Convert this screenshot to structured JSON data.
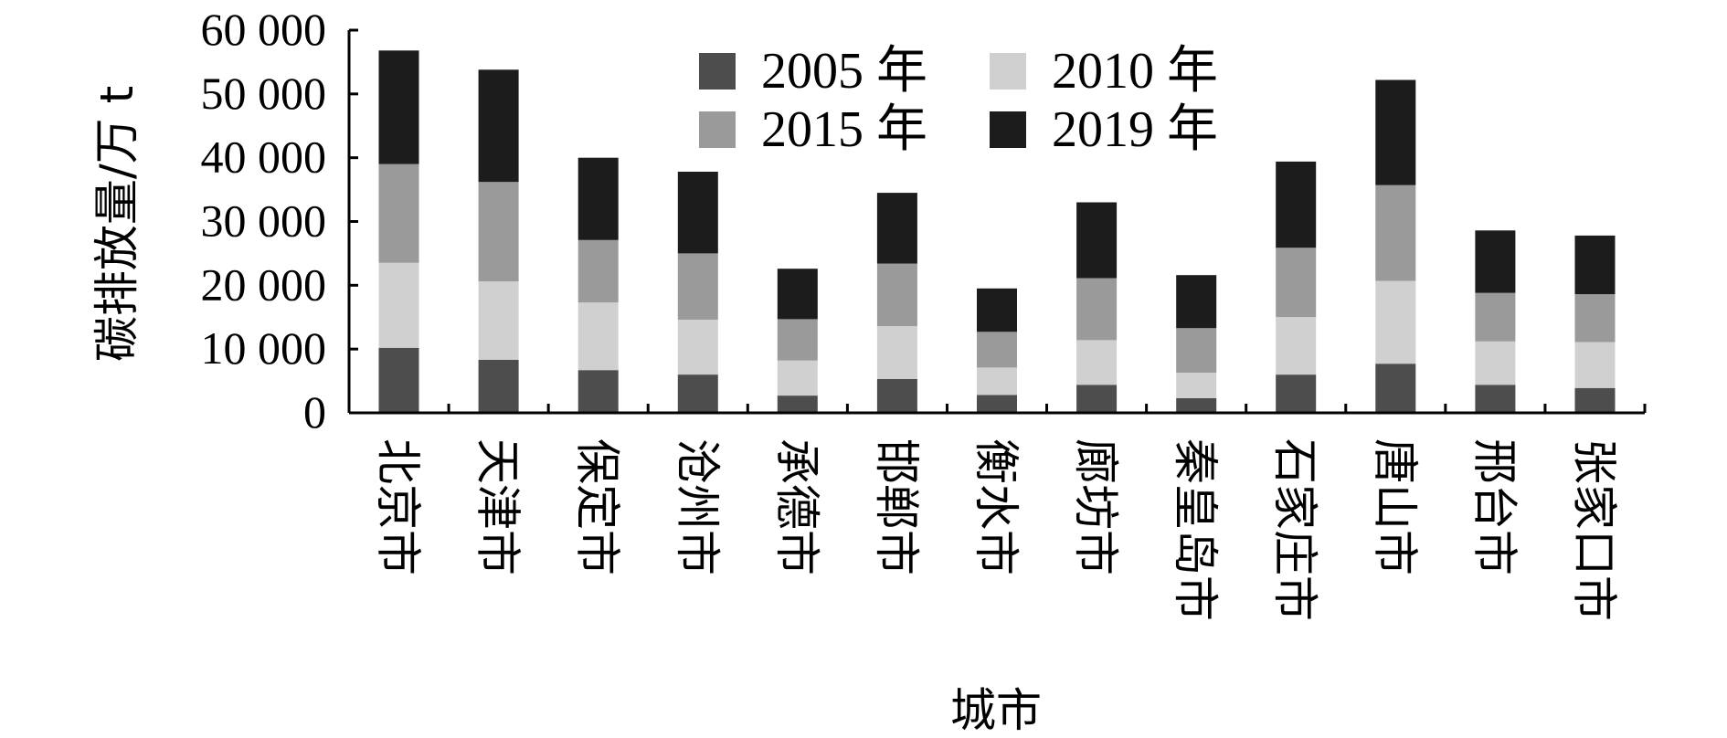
{
  "chart_data": {
    "type": "bar",
    "stacked": true,
    "title": "",
    "xlabel": "城市",
    "ylabel": "碳排放量/万 t",
    "ylim": [
      0,
      60000
    ],
    "yticks": [
      0,
      10000,
      20000,
      30000,
      40000,
      50000,
      60000
    ],
    "ytick_labels": [
      "0",
      "10 000",
      "20 000",
      "30 000",
      "40 000",
      "50 000",
      "60 000"
    ],
    "grid": false,
    "legend_position": "top-center",
    "categories": [
      "北京市",
      "天津市",
      "保定市",
      "沧州市",
      "承德市",
      "邯郸市",
      "衡水市",
      "廊坊市",
      "秦皇岛市",
      "石家庄市",
      "唐山市",
      "邢台市",
      "张家口市"
    ],
    "series": [
      {
        "name": "2005 年",
        "color": "#4d4d4d",
        "values": [
          10200,
          8300,
          6700,
          6000,
          2700,
          5300,
          2800,
          4400,
          2300,
          6000,
          7700,
          4400,
          3900
        ]
      },
      {
        "name": "2010 年",
        "color": "#d0d0d0",
        "values": [
          13300,
          12300,
          10600,
          8600,
          5500,
          8300,
          4300,
          7000,
          4000,
          9000,
          13000,
          6800,
          7200
        ]
      },
      {
        "name": "2015 年",
        "color": "#9a9a9a",
        "values": [
          15500,
          15600,
          9800,
          10400,
          6500,
          9800,
          5600,
          9700,
          7000,
          10900,
          15000,
          7600,
          7500
        ]
      },
      {
        "name": "2019 年",
        "color": "#1c1c1c",
        "values": [
          17800,
          17600,
          12900,
          12800,
          7900,
          11100,
          6800,
          11900,
          8300,
          13500,
          16500,
          9800,
          9200
        ]
      }
    ]
  }
}
